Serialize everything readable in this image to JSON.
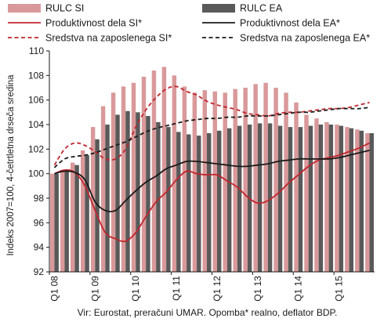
{
  "chart_data": {
    "type": "bar",
    "ylabel": "Indeks 2007=100, 4-četrtletna drseča sredina",
    "ylim": [
      92,
      110
    ],
    "yticks": [
      92,
      94,
      96,
      98,
      100,
      102,
      104,
      106,
      108,
      110
    ],
    "xticks": [
      {
        "label": "Q1 08",
        "index": 0
      },
      {
        "label": "Q1 09",
        "index": 4
      },
      {
        "label": "Q1 10",
        "index": 8
      },
      {
        "label": "Q1 11",
        "index": 12
      },
      {
        "label": "Q1 12",
        "index": 16
      },
      {
        "label": "Q1 13",
        "index": 20
      },
      {
        "label": "Q1 14",
        "index": 24
      },
      {
        "label": "Q1 15",
        "index": 28
      }
    ],
    "bar_series": [
      {
        "name": "RULC SI",
        "color": "#d9999a",
        "values": [
          100.0,
          100.3,
          100.9,
          101.9,
          103.8,
          105.5,
          106.6,
          107.1,
          107.4,
          107.9,
          108.4,
          108.7,
          108.0,
          107.1,
          106.6,
          106.8,
          106.7,
          106.6,
          106.9,
          107.0,
          107.3,
          107.4,
          107.0,
          106.6,
          105.8,
          104.8,
          104.5,
          104.2,
          104.0,
          103.8,
          103.6,
          103.3
        ]
      },
      {
        "name": "RULC EA",
        "color": "#595959",
        "values": [
          100.0,
          100.2,
          100.7,
          101.5,
          102.8,
          104.0,
          104.8,
          105.1,
          105.0,
          104.7,
          104.2,
          103.8,
          103.4,
          103.2,
          103.1,
          103.3,
          103.5,
          103.7,
          103.9,
          104.0,
          104.1,
          104.1,
          103.9,
          103.8,
          103.8,
          103.9,
          104.0,
          104.0,
          103.9,
          103.7,
          103.5,
          103.3
        ]
      }
    ],
    "line_series": [
      {
        "name": "Produktivnost dela SI*",
        "color": "#c0262d",
        "dash": "solid",
        "x": [
          0,
          1,
          2,
          3,
          4,
          5,
          6,
          7,
          8,
          9,
          10,
          11,
          12,
          13,
          14,
          15,
          16,
          17,
          18,
          19,
          20,
          21,
          22,
          23,
          24,
          25,
          26,
          27,
          28,
          29,
          30,
          31
        ],
        "values": [
          100.0,
          100.3,
          100.1,
          99.0,
          97.0,
          95.2,
          94.7,
          94.5,
          95.2,
          96.5,
          97.7,
          98.5,
          99.5,
          100.2,
          100.0,
          99.9,
          99.9,
          99.4,
          98.9,
          98.1,
          97.6,
          97.8,
          98.4,
          99.2,
          99.9,
          100.6,
          101.1,
          101.3,
          101.5,
          101.8,
          102.1,
          102.5
        ]
      },
      {
        "name": "Produktivnost dela EA*",
        "color": "#1a1a1a",
        "dash": "solid",
        "x": [
          0,
          1,
          2,
          3,
          4,
          5,
          6,
          7,
          8,
          9,
          10,
          11,
          12,
          13,
          14,
          15,
          16,
          17,
          18,
          19,
          20,
          21,
          22,
          23,
          24,
          25,
          26,
          27,
          28,
          29,
          30,
          31
        ],
        "values": [
          100.0,
          100.2,
          100.1,
          99.5,
          97.7,
          97.0,
          97.0,
          97.8,
          98.6,
          99.3,
          99.8,
          100.4,
          100.7,
          101.0,
          101.0,
          100.9,
          100.8,
          100.7,
          100.6,
          100.6,
          100.7,
          100.8,
          101.0,
          101.1,
          101.2,
          101.2,
          101.2,
          101.2,
          101.3,
          101.5,
          101.7,
          101.9
        ]
      },
      {
        "name": "Sredstva na zaposlenega SI*",
        "color": "#c0262d",
        "dash": "dashed",
        "x": [
          0,
          1,
          2,
          3,
          4,
          5,
          6,
          7,
          8,
          9,
          10,
          11,
          12,
          13,
          14,
          15,
          16,
          17,
          18,
          19,
          20,
          21,
          22,
          23,
          24,
          25,
          26,
          27,
          28,
          29,
          30,
          31
        ],
        "values": [
          100.7,
          102.0,
          102.5,
          102.3,
          101.8,
          101.2,
          101.2,
          102.0,
          103.8,
          105.2,
          106.2,
          106.9,
          107.1,
          106.7,
          106.4,
          105.9,
          105.6,
          105.4,
          105.2,
          104.9,
          104.8,
          104.7,
          104.9,
          105.0,
          105.0,
          105.1,
          105.2,
          105.3,
          105.3,
          105.4,
          105.6,
          105.8
        ]
      },
      {
        "name": "Sredstva na zaposlenega EA*",
        "color": "#1a1a1a",
        "dash": "dashed",
        "x": [
          0,
          1,
          2,
          3,
          4,
          5,
          6,
          7,
          8,
          9,
          10,
          11,
          12,
          13,
          14,
          15,
          16,
          17,
          18,
          19,
          20,
          21,
          22,
          23,
          24,
          25,
          26,
          27,
          28,
          29,
          30,
          31
        ],
        "values": [
          100.5,
          101.2,
          101.4,
          101.5,
          101.7,
          102.0,
          102.3,
          102.6,
          103.0,
          103.4,
          103.7,
          103.9,
          104.1,
          104.3,
          104.4,
          104.5,
          104.5,
          104.6,
          104.6,
          104.7,
          104.7,
          104.7,
          104.8,
          104.9,
          105.0,
          105.0,
          105.1,
          105.2,
          105.3,
          105.3,
          105.3,
          105.4
        ]
      }
    ],
    "legend_placement": "top",
    "grid": false,
    "source_note": "Vir: Eurostat, preračuni UMAR. Opomba* realno, deflator BDP."
  }
}
